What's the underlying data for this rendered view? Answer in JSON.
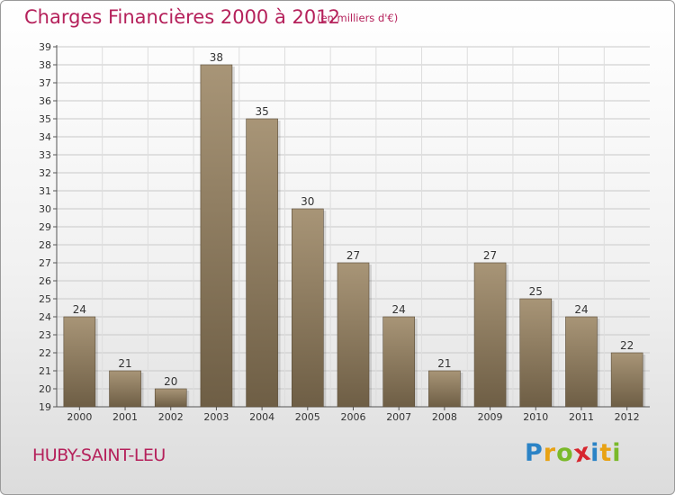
{
  "header": {
    "title": "Charges Financières 2000 à 2012",
    "subtitle": "(en milliers d'€)"
  },
  "footer": {
    "town": "HUBY-SAINT-LEU",
    "logo": {
      "letters": [
        "P",
        "r",
        "o",
        "x",
        "i",
        "t",
        "i"
      ],
      "colors": [
        "#2b83c6",
        "#e8a214",
        "#7ab929",
        "#d7262e",
        "#2b83c6",
        "#e8a214",
        "#7ab929"
      ]
    }
  },
  "colors": {
    "title": "#b5215b",
    "bar_light": "#a89577",
    "bar_dark": "#6e5e45",
    "grid": "#c9c9c9"
  },
  "chart_data": {
    "type": "bar",
    "categories": [
      "2000",
      "2001",
      "2002",
      "2003",
      "2004",
      "2005",
      "2006",
      "2007",
      "2008",
      "2009",
      "2010",
      "2011",
      "2012"
    ],
    "values": [
      24,
      21,
      20,
      38,
      35,
      30,
      27,
      24,
      21,
      27,
      25,
      24,
      22
    ],
    "data_labels": [
      "24",
      "21",
      "20",
      "38",
      "35",
      "30",
      "27",
      "24",
      "21",
      "27",
      "25",
      "24",
      "22"
    ],
    "yticks": [
      "19",
      "20",
      "21",
      "22",
      "23",
      "24",
      "25",
      "26",
      "27",
      "28",
      "29",
      "30",
      "31",
      "32",
      "33",
      "34",
      "35",
      "36",
      "37",
      "38",
      "39"
    ],
    "ylim": [
      19,
      39
    ],
    "grid": true,
    "title": "Charges Financières 2000 à 2012",
    "subtitle": "(en milliers d'€)"
  }
}
